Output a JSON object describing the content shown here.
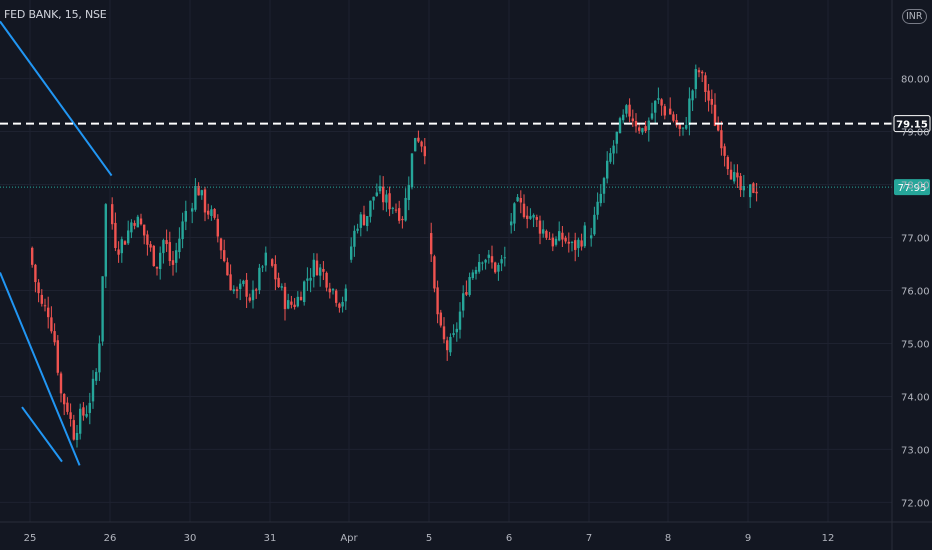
{
  "header": {
    "symbol": "FED BANK",
    "interval": "15",
    "exchange": "NSE",
    "currency": "INR"
  },
  "colors": {
    "background": "#131722",
    "up": "#26a69a",
    "down": "#ef5350",
    "trendline": "#2196f3",
    "grid": "#1e2230",
    "axis_text": "#b2b5be",
    "price_tag": "#26a69a",
    "level_tag": "#131722"
  },
  "chart_data": {
    "type": "candlestick",
    "ylim": [
      71.8,
      81.2
    ],
    "y_ticks": [
      72.0,
      73.0,
      74.0,
      75.0,
      76.0,
      77.0,
      78.0,
      79.0,
      80.0
    ],
    "x_ticks": [
      "25",
      "26",
      "30",
      "31",
      "Apr",
      "5",
      "6",
      "7",
      "8",
      "9",
      "12"
    ],
    "sessions": [
      {
        "label": "25",
        "path": [
          [
            0,
            76.8
          ],
          [
            0.08,
            76.2
          ],
          [
            0.16,
            75.7
          ],
          [
            0.26,
            75.6
          ],
          [
            0.34,
            75.0
          ],
          [
            0.42,
            74.0
          ],
          [
            0.5,
            73.8
          ],
          [
            0.58,
            73.3
          ],
          [
            0.66,
            73.6
          ],
          [
            0.74,
            73.7
          ],
          [
            0.82,
            74.1
          ],
          [
            0.9,
            74.6
          ],
          [
            1,
            77.6
          ]
        ]
      },
      {
        "label": "26",
        "path": [
          [
            0,
            77.6
          ],
          [
            0.1,
            76.8
          ],
          [
            0.22,
            77.0
          ],
          [
            0.32,
            77.4
          ],
          [
            0.42,
            77.2
          ],
          [
            0.52,
            76.8
          ],
          [
            0.62,
            76.5
          ],
          [
            0.72,
            77.0
          ],
          [
            0.82,
            76.4
          ],
          [
            0.9,
            76.9
          ],
          [
            1,
            77.5
          ]
        ]
      },
      {
        "label": "30",
        "path": [
          [
            0,
            77.5
          ],
          [
            0.1,
            78.0
          ],
          [
            0.2,
            77.6
          ],
          [
            0.3,
            77.4
          ],
          [
            0.42,
            76.8
          ],
          [
            0.52,
            76.2
          ],
          [
            0.62,
            75.9
          ],
          [
            0.72,
            76.1
          ],
          [
            0.82,
            75.8
          ],
          [
            0.9,
            76.2
          ],
          [
            1,
            76.6
          ]
        ]
      },
      {
        "label": "31",
        "path": [
          [
            0,
            76.6
          ],
          [
            0.12,
            76.1
          ],
          [
            0.24,
            75.7
          ],
          [
            0.36,
            75.8
          ],
          [
            0.48,
            76.2
          ],
          [
            0.6,
            76.5
          ],
          [
            0.72,
            76.3
          ],
          [
            0.84,
            76.0
          ],
          [
            0.92,
            75.8
          ],
          [
            1,
            75.9
          ]
        ]
      },
      {
        "label": "Apr",
        "path": [
          [
            0,
            76.6
          ],
          [
            0.12,
            77.3
          ],
          [
            0.24,
            77.4
          ],
          [
            0.36,
            77.9
          ],
          [
            0.48,
            77.7
          ],
          [
            0.6,
            77.6
          ],
          [
            0.72,
            77.4
          ],
          [
            0.8,
            78.2
          ],
          [
            0.88,
            79.0
          ],
          [
            1,
            78.7
          ]
        ]
      },
      {
        "label": "5",
        "path": [
          [
            0,
            77.1
          ],
          [
            0.08,
            76.0
          ],
          [
            0.16,
            75.2
          ],
          [
            0.24,
            74.9
          ],
          [
            0.32,
            75.0
          ],
          [
            0.42,
            75.6
          ],
          [
            0.52,
            76.2
          ],
          [
            0.62,
            76.5
          ],
          [
            0.72,
            76.7
          ],
          [
            0.82,
            76.5
          ],
          [
            0.9,
            76.4
          ],
          [
            1,
            76.6
          ]
        ]
      },
      {
        "label": "6",
        "path": [
          [
            0,
            77.2
          ],
          [
            0.12,
            77.6
          ],
          [
            0.24,
            77.5
          ],
          [
            0.36,
            77.3
          ],
          [
            0.48,
            77.1
          ],
          [
            0.6,
            76.9
          ],
          [
            0.72,
            77.0
          ],
          [
            0.84,
            76.8
          ],
          [
            0.92,
            76.9
          ],
          [
            1,
            77.1
          ]
        ]
      },
      {
        "label": "7",
        "path": [
          [
            0,
            77.0
          ],
          [
            0.1,
            77.4
          ],
          [
            0.2,
            78.0
          ],
          [
            0.3,
            78.6
          ],
          [
            0.42,
            79.1
          ],
          [
            0.52,
            79.4
          ],
          [
            0.62,
            79.2
          ],
          [
            0.72,
            79.0
          ],
          [
            0.82,
            79.3
          ],
          [
            0.9,
            79.6
          ],
          [
            1,
            79.4
          ]
        ]
      },
      {
        "label": "8",
        "path": [
          [
            0,
            79.4
          ],
          [
            0.1,
            79.2
          ],
          [
            0.2,
            78.9
          ],
          [
            0.3,
            79.6
          ],
          [
            0.4,
            80.2
          ],
          [
            0.5,
            79.8
          ],
          [
            0.6,
            79.3
          ],
          [
            0.7,
            78.9
          ],
          [
            0.8,
            78.4
          ],
          [
            0.9,
            78.0
          ],
          [
            1,
            77.8
          ]
        ]
      },
      {
        "label": "9",
        "path": [
          [
            0,
            77.8
          ],
          [
            0.5,
            77.92
          ],
          [
            1,
            77.95
          ]
        ]
      }
    ],
    "trendlines": [
      {
        "from": {
          "session": 1,
          "t": 0.02,
          "price": 78.17
        },
        "to": {
          "session": 10,
          "t": 0.82,
          "price": 81.08
        }
      },
      {
        "from": {
          "session": 0,
          "t": 0.62,
          "price": 72.7
        },
        "to": {
          "session": 10,
          "t": 0.82,
          "price": 76.34
        }
      },
      {
        "from": {
          "session": 0,
          "t": -0.1,
          "price": 73.8
        },
        "to": {
          "session": 0,
          "t": 0.4,
          "price": 72.77
        }
      }
    ],
    "horizontal_level": {
      "price": 79.15,
      "label": "79.15"
    },
    "last_price": {
      "price": 77.95,
      "label": "77.95"
    }
  }
}
